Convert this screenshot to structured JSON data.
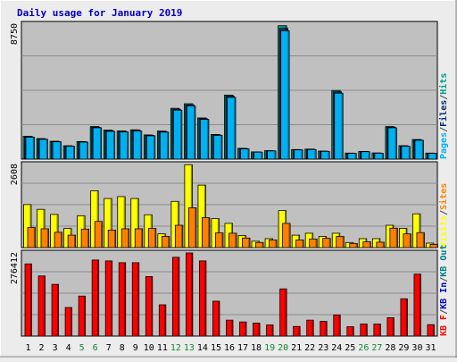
{
  "title": "Daily usage for January 2019",
  "colors": {
    "background": "#ececec",
    "panel": "#c0c0c0",
    "title": "#0000bb",
    "pages": "#00b0f0",
    "files": "#003070",
    "hits": "#00a080",
    "visits": "#ffff00",
    "sites": "#ff8000",
    "kbin": "#0000cc",
    "kbout": "#008080",
    "kbf": "#ff0000",
    "weekend_label": "#118833"
  },
  "chart_data": {
    "type": "bar",
    "title": "Daily usage for January 2019",
    "days": [
      "1",
      "2",
      "3",
      "4",
      "5",
      "6",
      "7",
      "8",
      "9",
      "10",
      "11",
      "12",
      "13",
      "14",
      "15",
      "16",
      "17",
      "18",
      "19",
      "20",
      "21",
      "22",
      "23",
      "24",
      "25",
      "26",
      "27",
      "28",
      "29",
      "30",
      "31"
    ],
    "weekend_days": [
      "5",
      "6",
      "12",
      "13",
      "19",
      "20",
      "26",
      "27"
    ],
    "panels": [
      {
        "name": "hits-files-pages",
        "ymax_label": "8750",
        "ylim": [
          0,
          8750
        ],
        "right_labels": [
          {
            "text": "Pages",
            "color": "#00b0f0"
          },
          {
            "text": "/",
            "color": "#444444"
          },
          {
            "text": "Files",
            "color": "#003070"
          },
          {
            "text": "/",
            "color": "#444444"
          },
          {
            "text": "Hits",
            "color": "#00a080"
          }
        ],
        "series": [
          {
            "name": "Hits",
            "color": "#00a080",
            "values": [
              1480,
              1330,
              1160,
              865,
              1140,
              2112,
              1880,
              1830,
              1900,
              1570,
              1820,
              3294,
              3590,
              2670,
              1600,
              4150,
              700,
              470,
              550,
              8650,
              620,
              650,
              520,
              4450,
              390,
              500,
              400,
              2112,
              870,
              1270,
              390
            ]
          },
          {
            "name": "Files",
            "color": "#003070",
            "values": [
              1450,
              1300,
              1140,
              850,
              1120,
              2070,
              1840,
              1790,
              1860,
              1540,
              1780,
              3230,
              3520,
              2620,
              1570,
              4080,
              680,
              460,
              540,
              8480,
              610,
              640,
              510,
              4360,
              380,
              490,
              390,
              2070,
              850,
              1240,
              380
            ]
          },
          {
            "name": "Pages",
            "color": "#00b0f0",
            "values": [
              1420,
              1280,
              1120,
              830,
              1100,
              2030,
              1800,
              1760,
              1820,
              1510,
              1750,
              3170,
              3450,
              2570,
              1540,
              4000,
              660,
              450,
              530,
              8320,
              600,
              620,
              500,
              4270,
              370,
              480,
              380,
              2030,
              830,
              1220,
              370
            ]
          }
        ]
      },
      {
        "name": "visits-sites",
        "ymax_label": "2608",
        "ylim": [
          0,
          2608
        ],
        "right_labels": [
          {
            "text": "Visits",
            "color": "#ffff00"
          },
          {
            "text": "/",
            "color": "#444444"
          },
          {
            "text": "Sites",
            "color": "#ff8000"
          }
        ],
        "series": [
          {
            "name": "Visits",
            "color": "#ffff00",
            "values": [
              1350,
              1200,
              1040,
              600,
              1000,
              1780,
              1540,
              1600,
              1540,
              1030,
              430,
              1450,
              2600,
              1960,
              910,
              760,
              380,
              200,
              280,
              1160,
              390,
              450,
              350,
              450,
              160,
              280,
              280,
              700,
              600,
              1060,
              140
            ]
          },
          {
            "name": "Sites",
            "color": "#ff8000",
            "values": [
              630,
              590,
              480,
              390,
              580,
              820,
              550,
              590,
              590,
              600,
              350,
              700,
              1250,
              940,
              460,
              450,
              300,
              160,
              240,
              760,
              240,
              270,
              290,
              350,
              130,
              180,
              170,
              610,
              430,
              470,
              100
            ]
          }
        ]
      },
      {
        "name": "kbytes",
        "ymax_label": "276412",
        "ylim": [
          0,
          276412
        ],
        "right_labels": [
          {
            "text": "KB F",
            "color": "#ff0000"
          },
          {
            "text": "/",
            "color": "#444444"
          },
          {
            "text": "KB In",
            "color": "#0000cc"
          },
          {
            "text": "/",
            "color": "#444444"
          },
          {
            "text": "KB Out",
            "color": "#008080"
          }
        ],
        "series": [
          {
            "name": "KB F",
            "color": "#ff0000",
            "values": [
              240000,
              200000,
              172000,
              95000,
              133000,
              253000,
              250000,
              244000,
              244000,
              198000,
              104000,
              262000,
              276412,
              250000,
              116000,
              53000,
              47000,
              43000,
              37000,
              157000,
              32000,
              53000,
              49000,
              70000,
              31000,
              40000,
              40000,
              61000,
              124000,
              206000,
              38000
            ]
          }
        ]
      }
    ]
  }
}
